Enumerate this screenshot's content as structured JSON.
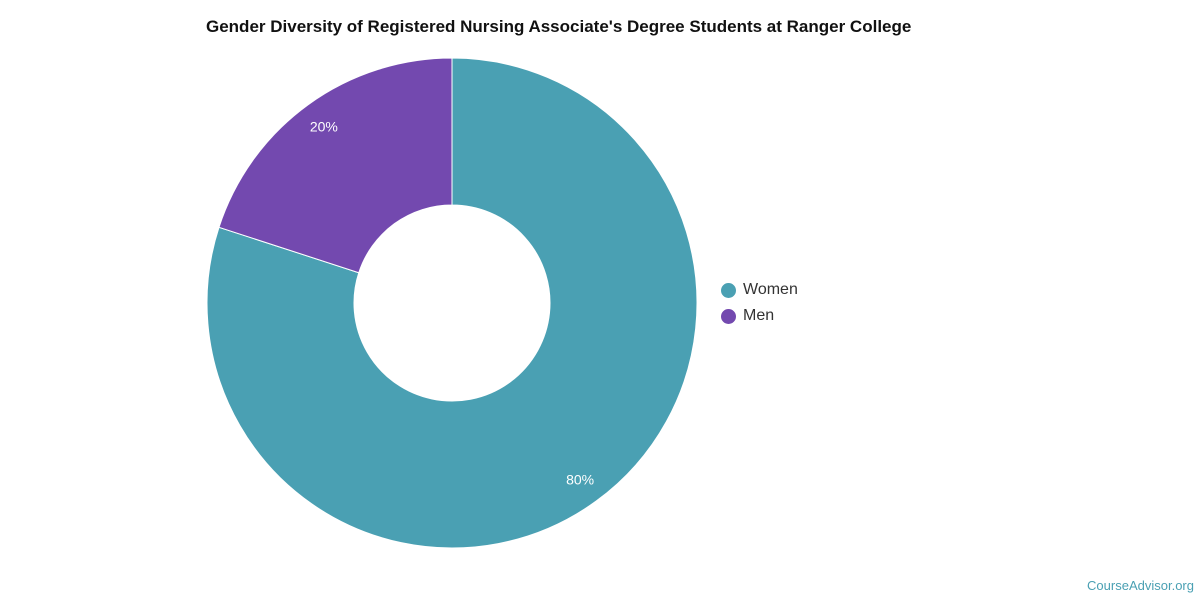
{
  "chart_data": {
    "type": "pie",
    "title": "Gender Diversity of Registered Nursing Associate's Degree Students at Ranger College",
    "donut": true,
    "slices": [
      {
        "label": "Women",
        "value": 80,
        "data_label": "80%",
        "color": "#4aa0b3"
      },
      {
        "label": "Men",
        "value": 20,
        "data_label": "20%",
        "color": "#7349af"
      }
    ],
    "legend_placement": "right"
  },
  "credit": "CourseAdvisor.org"
}
